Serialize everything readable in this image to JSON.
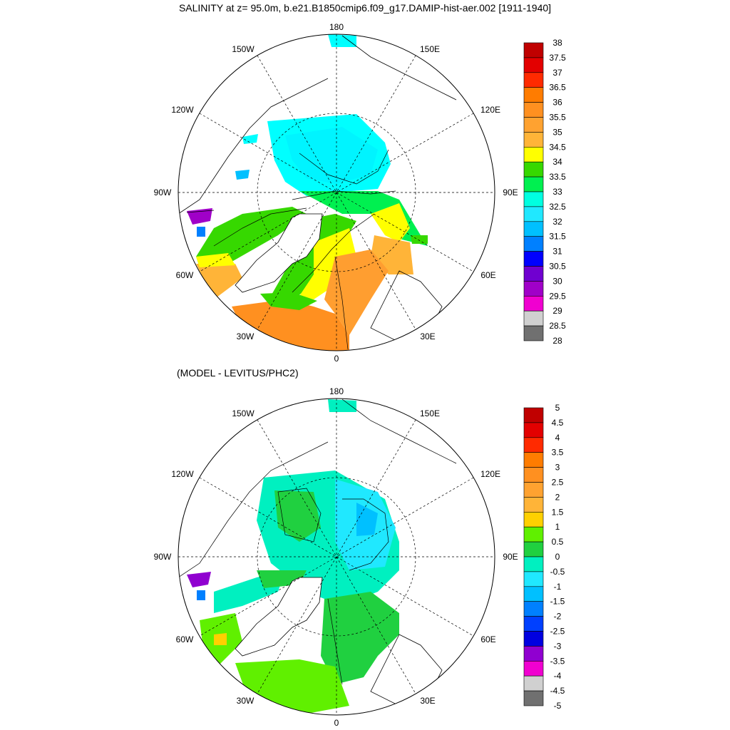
{
  "title": "SALINITY at z=  95.0m, b.e21.B1850cmip6.f09_g17.DAMIP-hist-aer.002 [1911-1940]",
  "subtitle": "(MODEL - LEVITUS/PHC2)",
  "lon_labels": [
    "180",
    "150E",
    "120E",
    "90E",
    "60E",
    "30E",
    "0",
    "30W",
    "60W",
    "90W",
    "120W",
    "150W"
  ],
  "colors": {
    "levels20": [
      "#bf0000",
      "#e00000",
      "#ff2000",
      "#f07800",
      "#f68a1a",
      "#f8a030",
      "#f8b440",
      "#ffff00",
      "#36d000",
      "#00ee40",
      "#00ffd0",
      "#00f0ff",
      "#00d8ff",
      "#00b0ff",
      "#0070ff",
      "#0000ff",
      "#6000c8",
      "#a000d8",
      "#f000e0",
      "#d0d0d0",
      "#707070"
    ]
  },
  "panels": [
    {
      "name": "model-salinity",
      "colorbar": {
        "labels": [
          "38",
          "37.5",
          "37",
          "36.5",
          "36",
          "35.5",
          "35",
          "34.5",
          "34",
          "33.5",
          "33",
          "32.5",
          "32",
          "31.5",
          "31",
          "30.5",
          "30",
          "29.5",
          "29",
          "28.5",
          "28"
        ],
        "colors": [
          "#c00000",
          "#e30000",
          "#ff2a00",
          "#ff7c00",
          "#ff9020",
          "#ffa230",
          "#ffb438",
          "#ffff00",
          "#36d800",
          "#00f050",
          "#00ffe0",
          "#20e8ff",
          "#00c0ff",
          "#0080ff",
          "#0000ff",
          "#7000d0",
          "#a000c8",
          "#f000d0",
          "#d0d0d0",
          "#707070"
        ]
      }
    },
    {
      "name": "model-minus-levitus",
      "colorbar": {
        "labels": [
          "5",
          "4.5",
          "4",
          "3.5",
          "3",
          "2.5",
          "2",
          "1.5",
          "1",
          "0.5",
          "0",
          "-0.5",
          "-1",
          "-1.5",
          "-2",
          "-2.5",
          "-3",
          "-3.5",
          "-4",
          "-4.5",
          "-5"
        ],
        "colors": [
          "#c00000",
          "#e30000",
          "#ff2a00",
          "#ff7c00",
          "#ff9020",
          "#ffa230",
          "#ffb438",
          "#ffd000",
          "#60f000",
          "#20d040",
          "#00f0c0",
          "#20e8ff",
          "#00c0ff",
          "#0080ff",
          "#0040ff",
          "#0000e0",
          "#9000d0",
          "#f000d0",
          "#d0d0d0",
          "#707070"
        ]
      }
    }
  ]
}
